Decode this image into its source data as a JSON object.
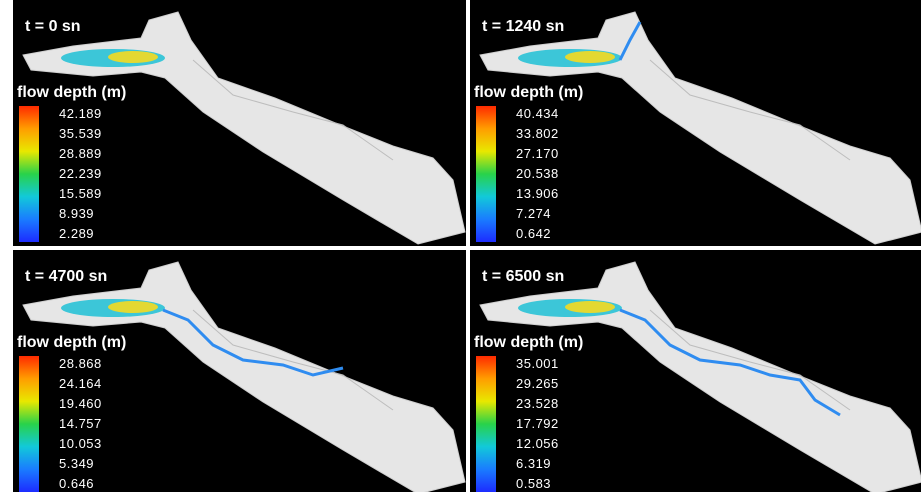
{
  "panels": [
    {
      "title": "t = 0 sn",
      "legend_title": "flow depth (m)",
      "legend_labels": [
        "42.189",
        "35.539",
        "28.889",
        "22.239",
        "15.589",
        "8.939",
        "2.289"
      ]
    },
    {
      "title": "t = 1240 sn",
      "legend_title": "flow depth (m)",
      "legend_labels": [
        "40.434",
        "33.802",
        "27.170",
        "20.538",
        "13.906",
        "7.274",
        "0.642"
      ]
    },
    {
      "title": "t = 4700 sn",
      "legend_title": "flow depth (m)",
      "legend_labels": [
        "28.868",
        "24.164",
        "19.460",
        "14.757",
        "10.053",
        "5.349",
        "0.646"
      ]
    },
    {
      "title": "t = 6500 sn",
      "legend_title": "flow depth (m)",
      "legend_labels": [
        "35.001",
        "29.265",
        "23.528",
        "17.792",
        "12.056",
        "6.319",
        "0.583"
      ]
    }
  ]
}
